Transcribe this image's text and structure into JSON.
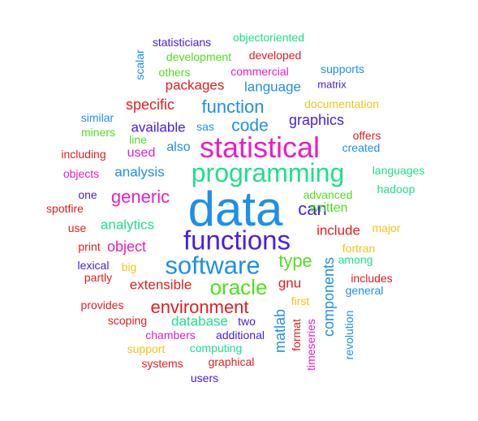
{
  "words": [
    {
      "text": "data",
      "color": "#1f8fe8"
    },
    {
      "text": "statistical",
      "color": "#e91ec8"
    },
    {
      "text": "programming",
      "color": "#1fe08a"
    },
    {
      "text": "functions",
      "color": "#4a1fe0"
    },
    {
      "text": "software",
      "color": "#1f8fe8"
    },
    {
      "text": "oracle",
      "color": "#4fe01f"
    },
    {
      "text": "environment",
      "color": "#e01f1f"
    },
    {
      "text": "function",
      "color": "#1f8fe8"
    },
    {
      "text": "code",
      "color": "#1f8fe8"
    },
    {
      "text": "generic",
      "color": "#e91ec8"
    },
    {
      "text": "can",
      "color": "#4a1fe0"
    },
    {
      "text": "type",
      "color": "#4fe01f"
    },
    {
      "text": "database",
      "color": "#1fe08a"
    },
    {
      "text": "language",
      "color": "#1f8fe8"
    },
    {
      "text": "packages",
      "color": "#e01f1f"
    },
    {
      "text": "graphics",
      "color": "#4a1fe0"
    },
    {
      "text": "specific",
      "color": "#e01f1f"
    },
    {
      "text": "available",
      "color": "#4a1fe0"
    },
    {
      "text": "also",
      "color": "#1f8fe8"
    },
    {
      "text": "analysis",
      "color": "#1f8fe8"
    },
    {
      "text": "analytics",
      "color": "#1fe08a"
    },
    {
      "text": "object",
      "color": "#e91ec8"
    },
    {
      "text": "written",
      "color": "#4fe01f"
    },
    {
      "text": "include",
      "color": "#e01f1f"
    },
    {
      "text": "extensible",
      "color": "#e01f1f"
    },
    {
      "text": "gnu",
      "color": "#e01f1f"
    },
    {
      "text": "used",
      "color": "#e91ec8"
    },
    {
      "text": "sas",
      "color": "#1f8fe8"
    },
    {
      "text": "statisticians",
      "color": "#4a1fe0"
    },
    {
      "text": "objectoriented",
      "color": "#1fe08a"
    },
    {
      "text": "development",
      "color": "#4fe01f"
    },
    {
      "text": "developed",
      "color": "#e01f1f"
    },
    {
      "text": "others",
      "color": "#4fe01f"
    },
    {
      "text": "commercial",
      "color": "#e91ec8"
    },
    {
      "text": "supports",
      "color": "#1f8fe8"
    },
    {
      "text": "matrix",
      "color": "#4a1fe0"
    },
    {
      "text": "scalar",
      "color": "#1f8fe8"
    },
    {
      "text": "documentation",
      "color": "#f5c518"
    },
    {
      "text": "similar",
      "color": "#1f8fe8"
    },
    {
      "text": "miners",
      "color": "#4fe01f"
    },
    {
      "text": "line",
      "color": "#4fe01f"
    },
    {
      "text": "offers",
      "color": "#e01f1f"
    },
    {
      "text": "created",
      "color": "#1f8fe8"
    },
    {
      "text": "including",
      "color": "#e01f1f"
    },
    {
      "text": "objects",
      "color": "#e91ec8"
    },
    {
      "text": "languages",
      "color": "#1fe08a"
    },
    {
      "text": "one",
      "color": "#4a1fe0"
    },
    {
      "text": "advanced",
      "color": "#4fe01f"
    },
    {
      "text": "hadoop",
      "color": "#1fe08a"
    },
    {
      "text": "spotfire",
      "color": "#e01f1f"
    },
    {
      "text": "use",
      "color": "#e01f1f"
    },
    {
      "text": "major",
      "color": "#f5c518"
    },
    {
      "text": "print",
      "color": "#e01f1f"
    },
    {
      "text": "fortran",
      "color": "#f5c518"
    },
    {
      "text": "among",
      "color": "#1fe08a"
    },
    {
      "text": "lexical",
      "color": "#4a1fe0"
    },
    {
      "text": "big",
      "color": "#f5c518"
    },
    {
      "text": "partly",
      "color": "#e01f1f"
    },
    {
      "text": "includes",
      "color": "#e01f1f"
    },
    {
      "text": "general",
      "color": "#1f8fe8"
    },
    {
      "text": "provides",
      "color": "#e01f1f"
    },
    {
      "text": "first",
      "color": "#f5c518"
    },
    {
      "text": "scoping",
      "color": "#e01f1f"
    },
    {
      "text": "two",
      "color": "#4a1fe0"
    },
    {
      "text": "chambers",
      "color": "#e91ec8"
    },
    {
      "text": "additional",
      "color": "#4a1fe0"
    },
    {
      "text": "support",
      "color": "#f5c518"
    },
    {
      "text": "computing",
      "color": "#1fe08a"
    },
    {
      "text": "systems",
      "color": "#e01f1f"
    },
    {
      "text": "graphical",
      "color": "#e01f1f"
    },
    {
      "text": "users",
      "color": "#4a1fe0"
    },
    {
      "text": "matlab",
      "color": "#1f8fe8"
    },
    {
      "text": "format",
      "color": "#e01f1f"
    },
    {
      "text": "timeseries",
      "color": "#e91ec8"
    },
    {
      "text": "components",
      "color": "#1f8fe8"
    },
    {
      "text": "revolution",
      "color": "#1f8fe8"
    }
  ]
}
